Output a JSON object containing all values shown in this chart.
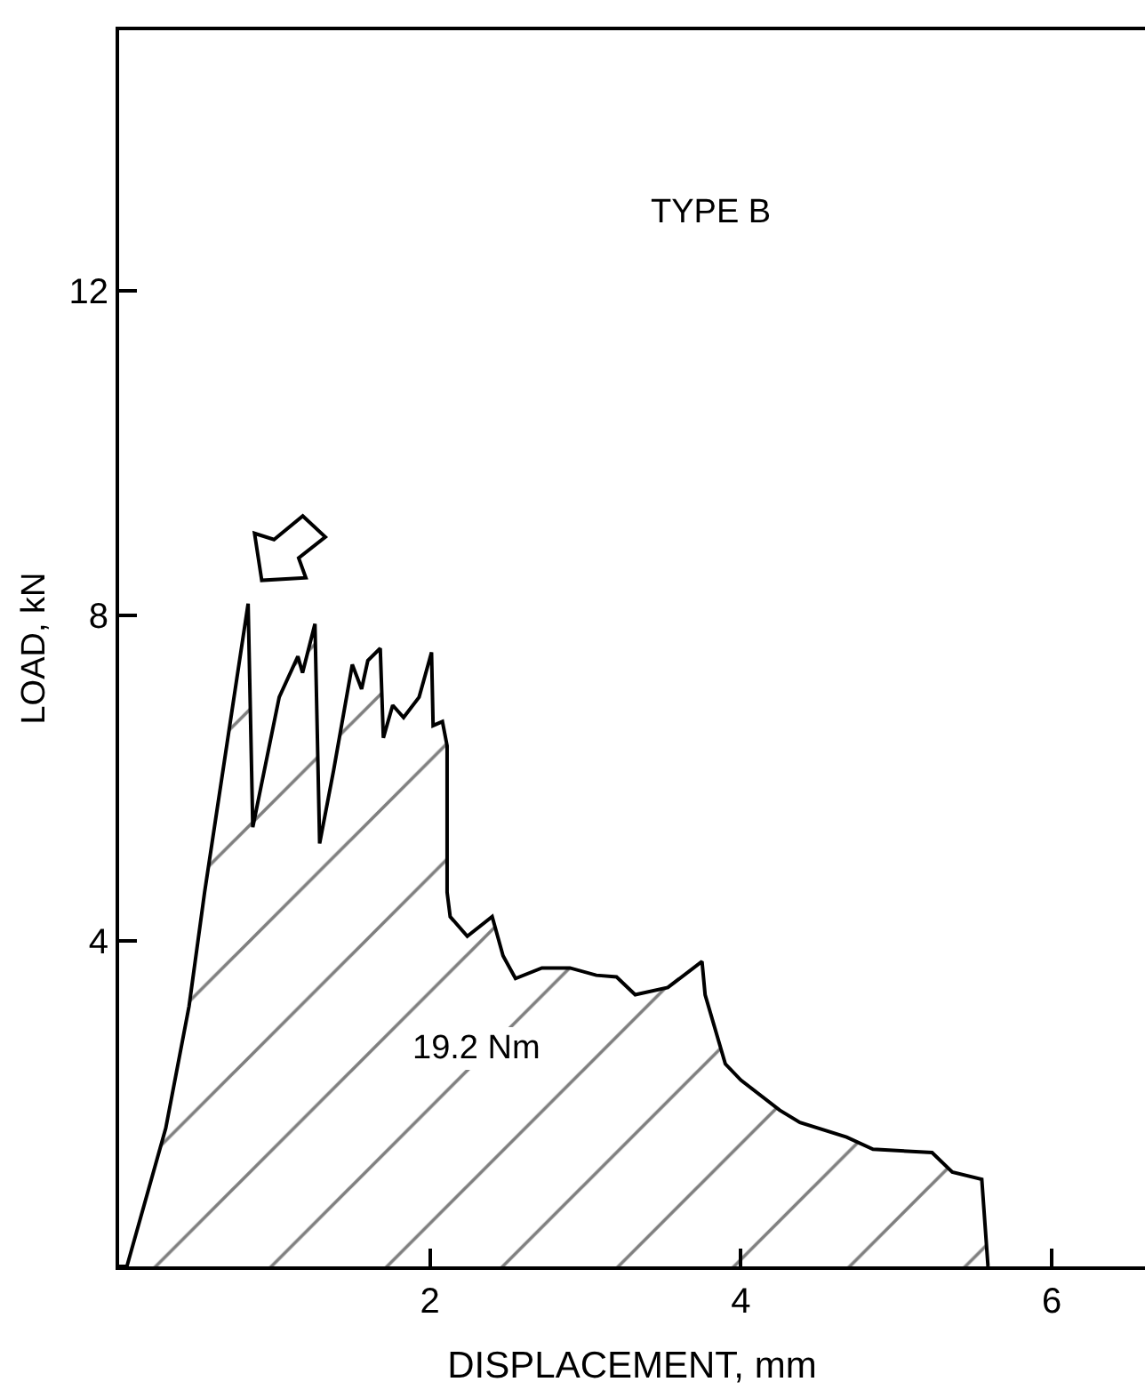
{
  "chart_data": {
    "type": "area",
    "xlabel": "DISPLACEMENT, mm",
    "ylabel": "LOAD, kN",
    "x": [
      0,
      0.05,
      0.3,
      0.45,
      0.55,
      0.83,
      0.86,
      1.03,
      1.15,
      1.18,
      1.26,
      1.29,
      1.38,
      1.5,
      1.56,
      1.6,
      1.68,
      1.7,
      1.76,
      1.83,
      1.93,
      2.01,
      2.02,
      2.08,
      2.11,
      2.11,
      2.13,
      2.24,
      2.4,
      2.47,
      2.55,
      2.72,
      2.9,
      3.07,
      3.2,
      3.32,
      3.53,
      3.75,
      3.77,
      3.9,
      4.0,
      4.25,
      4.38,
      4.68,
      4.85,
      5.23,
      5.36,
      5.55,
      5.59
    ],
    "values": [
      0,
      0,
      1.7,
      3.2,
      4.6,
      8.15,
      5.4,
      7.0,
      7.5,
      7.3,
      7.9,
      5.2,
      6.1,
      7.4,
      7.1,
      7.45,
      7.6,
      6.5,
      6.9,
      6.75,
      7.0,
      7.55,
      6.65,
      6.7,
      6.4,
      4.6,
      4.3,
      4.06,
      4.3,
      3.82,
      3.54,
      3.67,
      3.67,
      3.58,
      3.56,
      3.34,
      3.43,
      3.75,
      3.34,
      2.49,
      2.29,
      1.92,
      1.77,
      1.59,
      1.44,
      1.4,
      1.16,
      1.07,
      0
    ],
    "color": "#000000",
    "xlim": [
      0,
      6.6
    ],
    "ylim": [
      0,
      15.2
    ],
    "xticks": [
      2,
      4,
      6
    ],
    "yticks": [
      4,
      8,
      12
    ],
    "annotations": [
      "TYPE B",
      "19.2 Nm"
    ]
  }
}
